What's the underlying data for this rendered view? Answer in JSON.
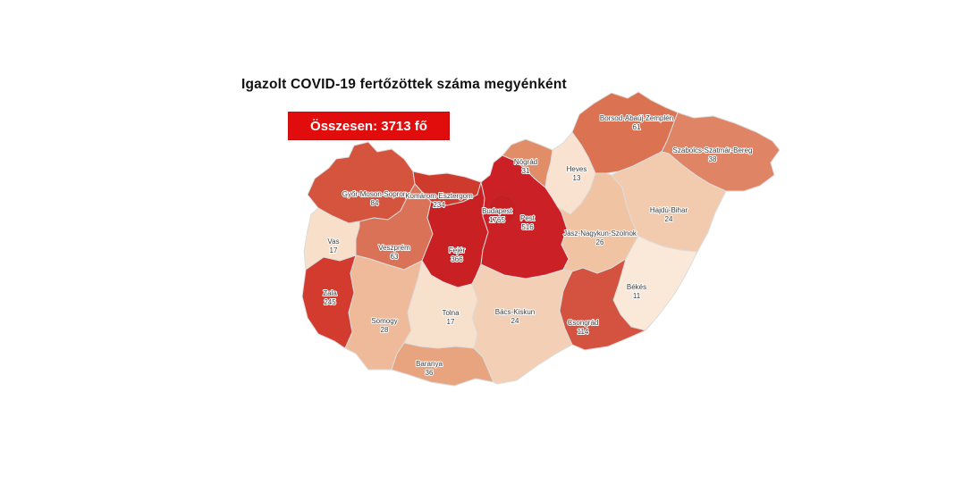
{
  "title": "Igazolt COVID-19 fertőzöttek száma megyénként",
  "total_badge": {
    "label": "Összesen: 3713 fő",
    "background": "#e10d0d",
    "text_color": "#ffffff"
  },
  "map": {
    "border_color": "#dcdcdc",
    "label_color": "#3b3b3b",
    "budapest_outline_color": "#b03530"
  },
  "chart_data": {
    "type": "heatmap",
    "subtype": "choropleth-map-hungary-counties",
    "title": "Igazolt COVID-19 fertőzöttek száma megyénként",
    "total": 3713,
    "unit": "fő",
    "legend": "none",
    "color_scale": {
      "min_color": "#fae9d9",
      "max_color": "#c71e24"
    },
    "counties": [
      {
        "id": "gyor",
        "name": "Győr-Moson-Sopron",
        "value": 84,
        "color": "#d5543e"
      },
      {
        "id": "komarom",
        "name": "Komárom-Esztergom",
        "value": 234,
        "color": "#ce3b2c"
      },
      {
        "id": "vas",
        "name": "Vas",
        "value": 17,
        "color": "#f8dfca"
      },
      {
        "id": "veszprem",
        "name": "Veszprém",
        "value": 63,
        "color": "#d97257"
      },
      {
        "id": "zala",
        "name": "Zala",
        "value": 245,
        "color": "#d23b2e"
      },
      {
        "id": "somogy",
        "name": "Somogy",
        "value": 28,
        "color": "#efba9a"
      },
      {
        "id": "fejer",
        "name": "Fejér",
        "value": 366,
        "color": "#c92023"
      },
      {
        "id": "tolna",
        "name": "Tolna",
        "value": 17,
        "color": "#f8e1cc"
      },
      {
        "id": "baranya",
        "name": "Baranya",
        "value": 36,
        "color": "#e7a47e"
      },
      {
        "id": "bacs",
        "name": "Bács-Kiskun",
        "value": 24,
        "color": "#f3d0b5"
      },
      {
        "id": "pest",
        "name": "Pest",
        "value": 516,
        "color": "#cb2026"
      },
      {
        "id": "budapest",
        "name": "Budapest",
        "value": 1765,
        "color": "#c71e24"
      },
      {
        "id": "nograd",
        "name": "Nógrád",
        "value": 31,
        "color": "#e08d68"
      },
      {
        "id": "heves",
        "name": "Heves",
        "value": 13,
        "color": "#f9e3d0"
      },
      {
        "id": "borsod",
        "name": "Borsod-Abaúj-Zemplén",
        "value": 61,
        "color": "#db7352"
      },
      {
        "id": "szabolcs",
        "name": "Szabolcs-Szatmár-Bereg",
        "value": 38,
        "color": "#df8565"
      },
      {
        "id": "hajdu",
        "name": "Hajdú-Bihar",
        "value": 24,
        "color": "#f2cbae"
      },
      {
        "id": "jasz",
        "name": "Jász-Nagykun-Szolnok",
        "value": 26,
        "color": "#f0c3a3"
      },
      {
        "id": "bekes",
        "name": "Békés",
        "value": 11,
        "color": "#fae9d9"
      },
      {
        "id": "csongrad",
        "name": "Csongrád",
        "value": 114,
        "color": "#d35240"
      }
    ]
  }
}
